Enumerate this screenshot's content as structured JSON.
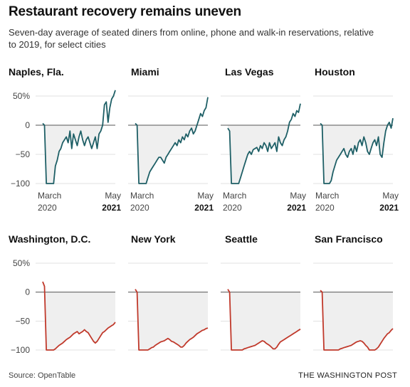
{
  "title": "Restaurant recovery remains uneven",
  "subtitle": "Seven-day average of seated diners from online, phone and walk-in reservations, relative to 2019, for select cities",
  "source": "Source: OpenTable",
  "credit": "THE WASHINGTON POST",
  "colors": {
    "top_row_line": "#1e5f66",
    "bottom_row_line": "#c0392b",
    "fill": "#efefef",
    "zero_line": "#555555",
    "grid": "#e0e0e0"
  },
  "chart_data": [
    {
      "type": "line",
      "title": "Naples, Fla.",
      "x_labels": [
        {
          "month": "March",
          "year": "2020"
        },
        {
          "month": "May",
          "year": "2021"
        }
      ],
      "y_ticks": [
        "50%",
        "0",
        "−50",
        "−100"
      ],
      "ylim": [
        -100,
        50
      ],
      "color": "top",
      "values": [
        3,
        0,
        -100,
        -100,
        -100,
        -100,
        -100,
        -70,
        -60,
        -45,
        -40,
        -30,
        -25,
        -20,
        -30,
        -10,
        -40,
        -15,
        -25,
        -35,
        -20,
        -10,
        -25,
        -35,
        -25,
        -20,
        -30,
        -40,
        -30,
        -20,
        -40,
        -15,
        -10,
        0,
        35,
        40,
        5,
        30,
        45,
        50,
        60
      ]
    },
    {
      "type": "line",
      "title": "Miami",
      "x_labels": [
        {
          "month": "March",
          "year": "2020"
        },
        {
          "month": "May",
          "year": "2021"
        }
      ],
      "y_ticks": [
        "50%",
        "0",
        "−50",
        "−100"
      ],
      "ylim": [
        -100,
        50
      ],
      "color": "top",
      "values": [
        3,
        0,
        -100,
        -100,
        -100,
        -100,
        -100,
        -90,
        -80,
        -75,
        -70,
        -65,
        -60,
        -55,
        -55,
        -60,
        -65,
        -55,
        -50,
        -45,
        -40,
        -35,
        -30,
        -35,
        -25,
        -30,
        -20,
        -25,
        -15,
        -20,
        -10,
        -5,
        -15,
        -10,
        0,
        10,
        20,
        15,
        25,
        30,
        48
      ]
    },
    {
      "type": "line",
      "title": "Las Vegas",
      "x_labels": [
        {
          "month": "March",
          "year": "2020"
        },
        {
          "month": "May",
          "year": "2021"
        }
      ],
      "y_ticks": [
        "50%",
        "0",
        "−50",
        "−100"
      ],
      "ylim": [
        -100,
        50
      ],
      "color": "top",
      "values": [
        -5,
        -10,
        -100,
        -100,
        -100,
        -100,
        -100,
        -90,
        -80,
        -70,
        -60,
        -50,
        -45,
        -50,
        -42,
        -40,
        -38,
        -45,
        -35,
        -40,
        -30,
        -35,
        -45,
        -30,
        -40,
        -35,
        -30,
        -45,
        -20,
        -30,
        -35,
        -25,
        -20,
        -10,
        5,
        10,
        20,
        15,
        25,
        22,
        37
      ]
    },
    {
      "type": "line",
      "title": "Houston",
      "x_labels": [
        {
          "month": "March",
          "year": "2020"
        },
        {
          "month": "May",
          "year": "2021"
        }
      ],
      "y_ticks": [
        "50%",
        "0",
        "−50",
        "−100"
      ],
      "ylim": [
        -100,
        50
      ],
      "color": "top",
      "values": [
        3,
        0,
        -100,
        -100,
        -100,
        -100,
        -95,
        -80,
        -70,
        -60,
        -55,
        -50,
        -45,
        -40,
        -50,
        -55,
        -45,
        -40,
        -50,
        -35,
        -45,
        -30,
        -25,
        -35,
        -20,
        -30,
        -45,
        -50,
        -40,
        -30,
        -25,
        -35,
        -20,
        -50,
        -55,
        -30,
        -10,
        0,
        5,
        -5,
        12
      ]
    },
    {
      "type": "line",
      "title": "Washington, D.C.",
      "x_labels": [],
      "y_ticks": [
        "50%",
        "0",
        "−50",
        "−100"
      ],
      "ylim": [
        -100,
        50
      ],
      "color": "bottom",
      "values": [
        18,
        10,
        -100,
        -100,
        -100,
        -100,
        -100,
        -98,
        -95,
        -92,
        -90,
        -88,
        -85,
        -82,
        -80,
        -78,
        -75,
        -72,
        -70,
        -68,
        -72,
        -70,
        -68,
        -65,
        -68,
        -70,
        -75,
        -80,
        -85,
        -88,
        -85,
        -80,
        -75,
        -70,
        -68,
        -65,
        -62,
        -60,
        -58,
        -56,
        -52
      ]
    },
    {
      "type": "line",
      "title": "New York",
      "x_labels": [],
      "y_ticks": [
        "50%",
        "0",
        "−50",
        "−100"
      ],
      "ylim": [
        -100,
        50
      ],
      "color": "bottom",
      "values": [
        5,
        0,
        -100,
        -100,
        -100,
        -100,
        -100,
        -100,
        -98,
        -96,
        -95,
        -92,
        -90,
        -88,
        -86,
        -85,
        -84,
        -82,
        -80,
        -82,
        -85,
        -86,
        -88,
        -90,
        -92,
        -95,
        -95,
        -92,
        -88,
        -85,
        -82,
        -80,
        -78,
        -75,
        -72,
        -70,
        -68,
        -66,
        -65,
        -63,
        -62
      ]
    },
    {
      "type": "line",
      "title": "Seattle",
      "x_labels": [],
      "y_ticks": [
        "50%",
        "0",
        "−50",
        "−100"
      ],
      "ylim": [
        -100,
        50
      ],
      "color": "bottom",
      "values": [
        5,
        0,
        -100,
        -100,
        -100,
        -100,
        -100,
        -100,
        -100,
        -98,
        -97,
        -96,
        -95,
        -94,
        -93,
        -92,
        -90,
        -88,
        -86,
        -84,
        -85,
        -88,
        -90,
        -92,
        -95,
        -98,
        -98,
        -95,
        -90,
        -86,
        -84,
        -82,
        -80,
        -78,
        -76,
        -74,
        -72,
        -70,
        -68,
        -66,
        -64
      ]
    },
    {
      "type": "line",
      "title": "San Francisco",
      "x_labels": [],
      "y_ticks": [
        "50%",
        "0",
        "−50",
        "−100"
      ],
      "ylim": [
        -100,
        50
      ],
      "color": "bottom",
      "values": [
        3,
        0,
        -100,
        -100,
        -100,
        -100,
        -100,
        -100,
        -100,
        -100,
        -100,
        -98,
        -97,
        -96,
        -95,
        -94,
        -93,
        -92,
        -90,
        -88,
        -86,
        -85,
        -84,
        -85,
        -88,
        -92,
        -95,
        -100,
        -100,
        -100,
        -100,
        -98,
        -95,
        -90,
        -85,
        -80,
        -76,
        -72,
        -70,
        -66,
        -63
      ]
    }
  ]
}
